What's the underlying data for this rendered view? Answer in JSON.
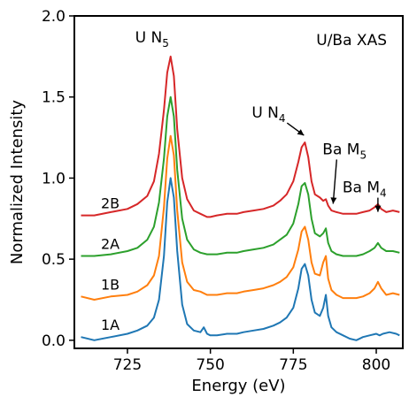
{
  "chart_data": {
    "type": "line",
    "title": "U/Ba XAS",
    "xlabel": "Energy (eV)",
    "ylabel": "Normalized Intensity",
    "xlim": [
      709,
      808
    ],
    "ylim": [
      -0.05,
      2.0
    ],
    "xticks": [
      725,
      750,
      775,
      800
    ],
    "yticks": [
      0.0,
      0.5,
      1.0,
      1.5,
      2.0
    ],
    "grid": false,
    "legend": "none",
    "annotations": [
      {
        "label": "U N",
        "sub": "5",
        "x": 738,
        "y": 1.75,
        "arrow": false
      },
      {
        "label": "U N",
        "sub": "4",
        "x": 779,
        "y": 1.22,
        "arrow": true
      },
      {
        "label": "Ba M",
        "sub": "5",
        "x": 787,
        "y": 0.82,
        "arrow": true
      },
      {
        "label": "Ba M",
        "sub": "4",
        "x": 800.5,
        "y": 0.77,
        "arrow": true
      }
    ],
    "series": [
      {
        "name": "1A",
        "color": "#1f77b4",
        "x": [
          711,
          715,
          720,
          725,
          728,
          731,
          733,
          734.5,
          736,
          737,
          738,
          739,
          740,
          741.5,
          743,
          745,
          747,
          748,
          749,
          750,
          752,
          755,
          758,
          760,
          763,
          766,
          769,
          771,
          773,
          775,
          776.5,
          777.5,
          778.5,
          779.5,
          780.5,
          781.5,
          783,
          784,
          784.8,
          785.5,
          786.5,
          788,
          790,
          792,
          794,
          796,
          798,
          800,
          801,
          802,
          804,
          806,
          807
        ],
        "values": [
          0.02,
          0.0,
          0.02,
          0.04,
          0.06,
          0.09,
          0.14,
          0.25,
          0.52,
          0.85,
          1.0,
          0.88,
          0.55,
          0.22,
          0.1,
          0.06,
          0.05,
          0.08,
          0.04,
          0.03,
          0.03,
          0.04,
          0.04,
          0.05,
          0.06,
          0.07,
          0.09,
          0.11,
          0.14,
          0.2,
          0.32,
          0.44,
          0.47,
          0.4,
          0.25,
          0.17,
          0.15,
          0.2,
          0.28,
          0.15,
          0.08,
          0.05,
          0.03,
          0.01,
          0.0,
          0.02,
          0.03,
          0.04,
          0.03,
          0.04,
          0.05,
          0.04,
          0.03
        ]
      },
      {
        "name": "1B",
        "color": "#ff7f0e",
        "x": [
          711,
          715,
          720,
          725,
          728,
          731,
          733,
          734.5,
          736,
          737,
          738,
          739,
          740,
          741.5,
          743,
          745,
          747,
          749,
          750,
          752,
          755,
          758,
          760,
          763,
          766,
          769,
          771,
          773,
          775,
          776.5,
          777.5,
          778.5,
          779.5,
          780.5,
          781.5,
          783,
          784,
          784.8,
          785.5,
          786.5,
          788,
          790,
          792,
          794,
          796,
          798,
          799.5,
          800.5,
          801.5,
          803,
          805,
          807
        ],
        "values": [
          0.27,
          0.25,
          0.27,
          0.28,
          0.3,
          0.34,
          0.4,
          0.52,
          0.82,
          1.12,
          1.26,
          1.14,
          0.8,
          0.48,
          0.36,
          0.31,
          0.3,
          0.28,
          0.28,
          0.28,
          0.29,
          0.29,
          0.3,
          0.31,
          0.32,
          0.34,
          0.36,
          0.39,
          0.45,
          0.56,
          0.67,
          0.7,
          0.62,
          0.48,
          0.41,
          0.4,
          0.48,
          0.52,
          0.38,
          0.31,
          0.28,
          0.26,
          0.26,
          0.26,
          0.27,
          0.29,
          0.32,
          0.36,
          0.32,
          0.28,
          0.29,
          0.28
        ]
      },
      {
        "name": "2A",
        "color": "#2ca02c",
        "x": [
          711,
          715,
          720,
          725,
          728,
          731,
          733,
          734.5,
          736,
          737,
          738,
          739,
          740,
          741.5,
          743,
          745,
          747,
          749,
          750,
          752,
          755,
          758,
          760,
          763,
          766,
          769,
          771,
          773,
          775,
          776.5,
          777.5,
          778.5,
          779.5,
          780.5,
          781.5,
          783,
          784,
          784.8,
          785.5,
          786.5,
          788,
          790,
          792,
          794,
          796,
          798,
          799.5,
          800.5,
          801.5,
          803,
          805,
          807
        ],
        "values": [
          0.52,
          0.52,
          0.53,
          0.55,
          0.57,
          0.62,
          0.7,
          0.85,
          1.12,
          1.38,
          1.5,
          1.38,
          1.05,
          0.75,
          0.62,
          0.56,
          0.54,
          0.53,
          0.53,
          0.53,
          0.54,
          0.54,
          0.55,
          0.56,
          0.57,
          0.59,
          0.62,
          0.65,
          0.72,
          0.84,
          0.95,
          0.97,
          0.9,
          0.75,
          0.66,
          0.64,
          0.66,
          0.69,
          0.6,
          0.55,
          0.53,
          0.52,
          0.52,
          0.52,
          0.53,
          0.55,
          0.57,
          0.6,
          0.57,
          0.55,
          0.55,
          0.54
        ]
      },
      {
        "name": "2B",
        "color": "#d62728",
        "x": [
          711,
          715,
          720,
          725,
          728,
          731,
          733,
          734.5,
          736,
          737,
          738,
          739,
          740,
          741.5,
          743,
          745,
          747,
          749,
          750,
          752,
          755,
          758,
          760,
          763,
          766,
          769,
          771,
          773,
          775,
          776.5,
          777.5,
          778.5,
          779.5,
          780.5,
          781.5,
          783,
          784,
          784.8,
          785.5,
          786.5,
          788,
          790,
          792,
          794,
          796,
          798,
          799.5,
          800.5,
          801.5,
          803,
          805,
          807
        ],
        "values": [
          0.77,
          0.77,
          0.79,
          0.81,
          0.84,
          0.89,
          0.98,
          1.15,
          1.42,
          1.65,
          1.75,
          1.63,
          1.3,
          1.0,
          0.87,
          0.8,
          0.78,
          0.76,
          0.76,
          0.77,
          0.78,
          0.78,
          0.79,
          0.8,
          0.81,
          0.83,
          0.86,
          0.9,
          0.98,
          1.1,
          1.19,
          1.22,
          1.13,
          0.98,
          0.9,
          0.88,
          0.86,
          0.87,
          0.83,
          0.8,
          0.79,
          0.78,
          0.78,
          0.78,
          0.79,
          0.8,
          0.82,
          0.84,
          0.81,
          0.79,
          0.8,
          0.79
        ]
      }
    ]
  }
}
